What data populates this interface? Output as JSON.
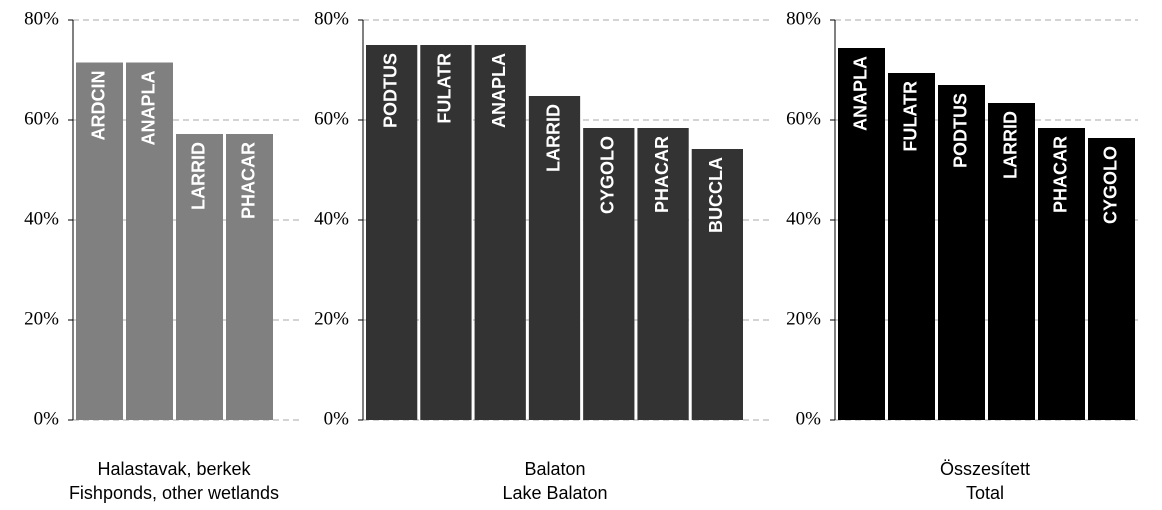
{
  "chart_data": [
    {
      "type": "bar",
      "title": "Halastavak, berkek",
      "subtitle": "Fishponds, other wetlands",
      "categories": [
        "ARDCIN",
        "ANAPLA",
        "LARRID",
        "PHACAR"
      ],
      "values": [
        71.5,
        71.5,
        57.2,
        57.2
      ],
      "color": "#808080",
      "ylim": [
        0,
        80
      ],
      "yticks": [
        {
          "value": 0,
          "label": "0%"
        },
        {
          "value": 20,
          "label": "20%"
        },
        {
          "value": 40,
          "label": "40%"
        },
        {
          "value": 60,
          "label": "60%"
        },
        {
          "value": 80,
          "label": "80%"
        }
      ],
      "grid": true
    },
    {
      "type": "bar",
      "title": "Balaton",
      "subtitle": "Lake Balaton",
      "categories": [
        "PODTUS",
        "FULATR",
        "ANAPLA",
        "LARRID",
        "CYGOLO",
        "PHACAR",
        "BUCCLA"
      ],
      "values": [
        75,
        75,
        75,
        64.8,
        58.4,
        58.4,
        54.2
      ],
      "color": "#333333",
      "ylim": [
        0,
        80
      ],
      "yticks": [
        {
          "value": 0,
          "label": "0%"
        },
        {
          "value": 20,
          "label": "20%"
        },
        {
          "value": 40,
          "label": "40%"
        },
        {
          "value": 60,
          "label": "60%"
        },
        {
          "value": 80,
          "label": "80%"
        }
      ],
      "grid": true
    },
    {
      "type": "bar",
      "title": "Összesített",
      "subtitle": "Total",
      "categories": [
        "ANAPLA",
        "FULATR",
        "PODTUS",
        "LARRID",
        "PHACAR",
        "CYGOLO"
      ],
      "values": [
        74.4,
        69.4,
        67,
        63.4,
        58.4,
        56.4
      ],
      "color": "#000000",
      "ylim": [
        0,
        80
      ],
      "yticks": [
        {
          "value": 0,
          "label": "0%"
        },
        {
          "value": 20,
          "label": "20%"
        },
        {
          "value": 40,
          "label": "40%"
        },
        {
          "value": 60,
          "label": "60%"
        },
        {
          "value": 80,
          "label": "80%"
        }
      ],
      "grid": true
    }
  ]
}
